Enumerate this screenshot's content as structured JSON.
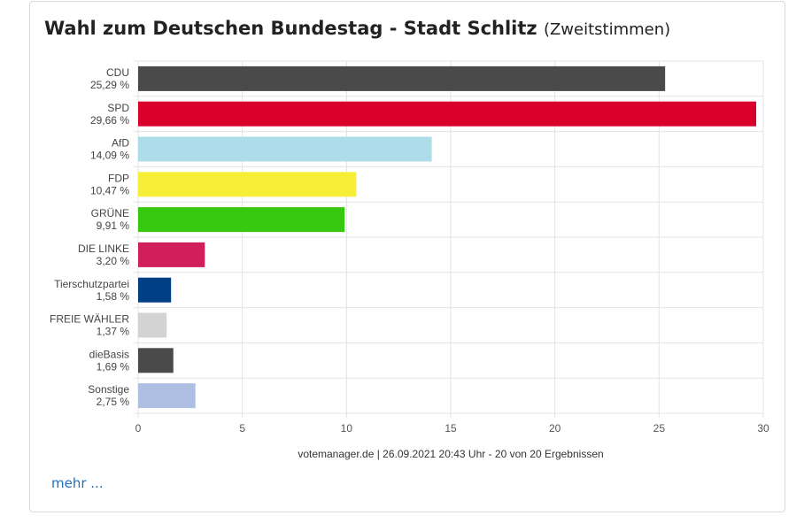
{
  "header": {
    "title": "Wahl zum Deutschen Bundestag - Stadt Schlitz",
    "subtitle": "(Zweitstimmen)"
  },
  "footer": {
    "source": "votemanager.de | 26.09.2021 20:43 Uhr - 20 von 20 Ergebnissen",
    "more_link": "mehr ..."
  },
  "chart_data": {
    "type": "bar",
    "orientation": "horizontal",
    "categories": [
      "CDU",
      "SPD",
      "AfD",
      "FDP",
      "GRÜNE",
      "DIE LINKE",
      "Tierschutzpartei",
      "FREIE WÄHLER",
      "dieBasis",
      "Sonstige"
    ],
    "value_labels": [
      "25,29 %",
      "29,66 %",
      "14,09 %",
      "10,47 %",
      "9,91 %",
      "3,20 %",
      "1,58 %",
      "1,37 %",
      "1,69 %",
      "2,75 %"
    ],
    "values": [
      25.29,
      29.66,
      14.09,
      10.47,
      9.91,
      3.2,
      1.58,
      1.37,
      1.69,
      2.75
    ],
    "colors": [
      "#4a4a4a",
      "#d9002b",
      "#acdde9",
      "#f7ee38",
      "#36c90f",
      "#d11f5c",
      "#003f85",
      "#d3d3d3",
      "#4a4a4a",
      "#afbfe3"
    ],
    "xlim": [
      0,
      30
    ],
    "xticks": [
      0,
      5,
      10,
      15,
      20,
      25,
      30
    ],
    "grid": true,
    "legend": "none"
  }
}
